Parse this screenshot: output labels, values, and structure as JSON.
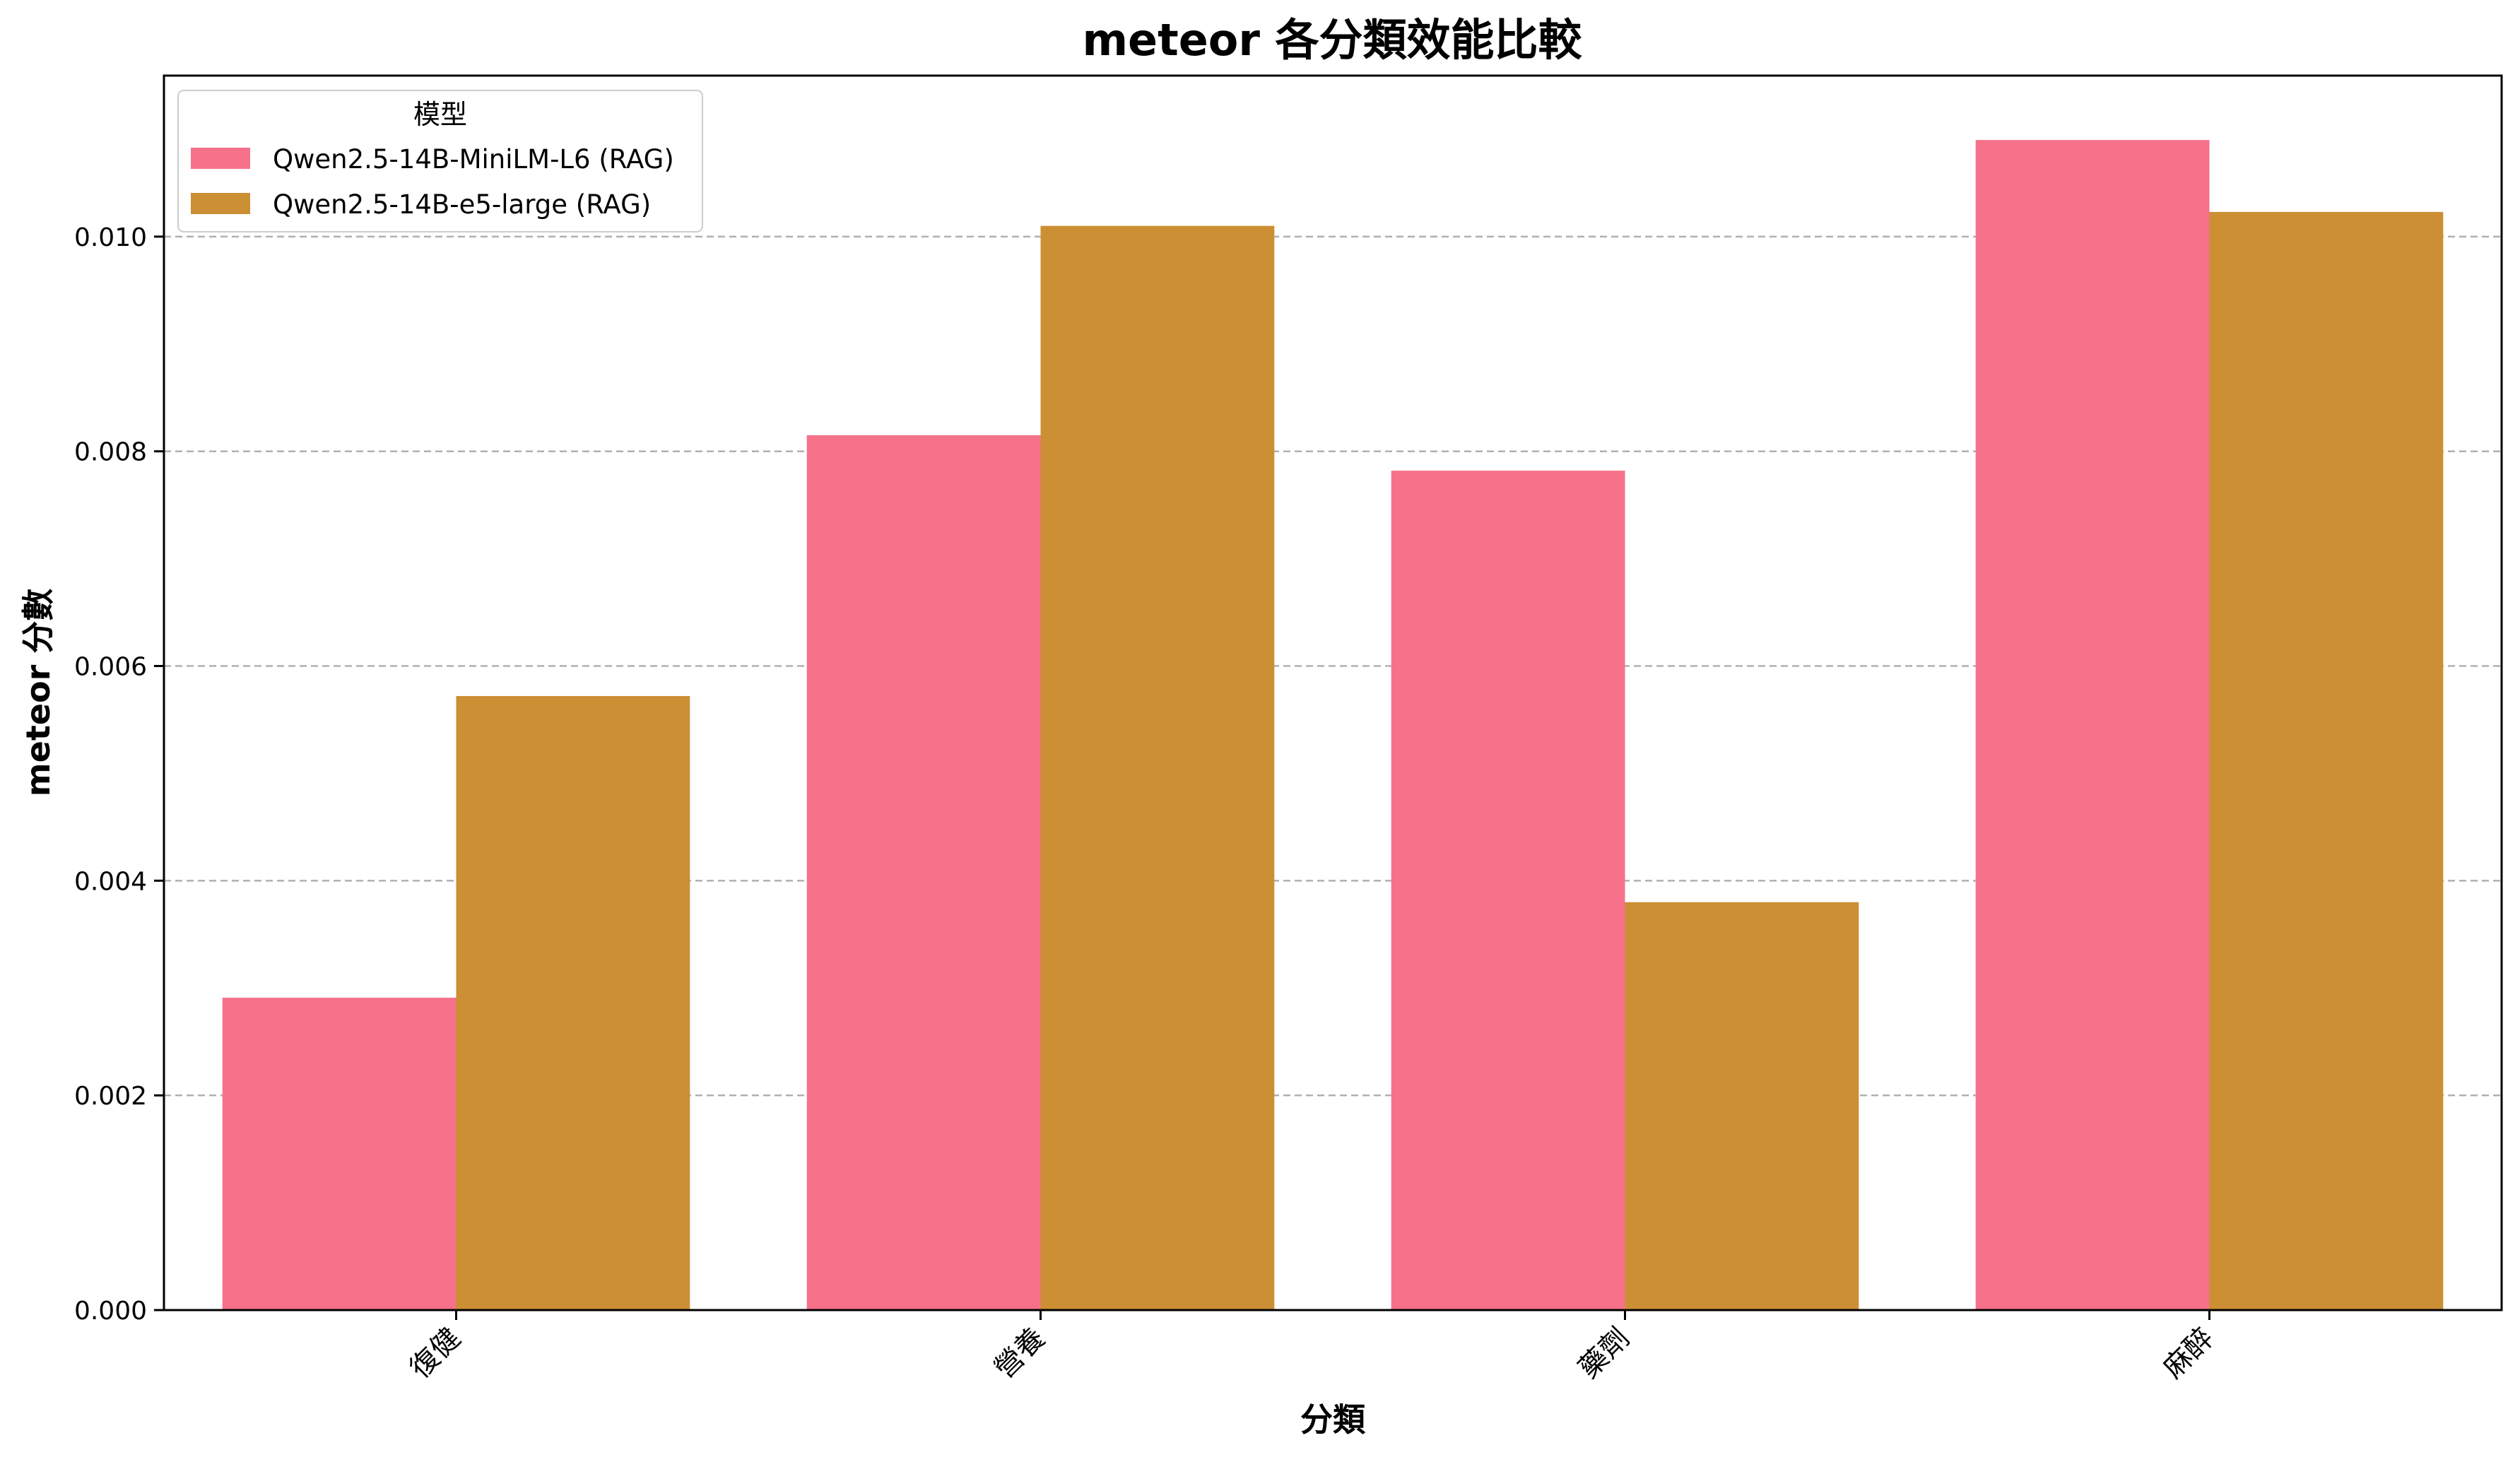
{
  "chart_data": {
    "type": "bar",
    "title": "meteor 各分類效能比較",
    "xlabel": "分類",
    "ylabel": "meteor 分數",
    "categories": [
      "復健",
      "營養",
      "藥劑",
      "麻醉"
    ],
    "series": [
      {
        "name": "Qwen2.5-14B-MiniLM-L6 (RAG)",
        "values": [
          0.00291,
          0.00815,
          0.00782,
          0.0109
        ],
        "color": "#f5728a"
      },
      {
        "name": "Qwen2.5-14B-e5-large (RAG)",
        "values": [
          0.00572,
          0.0101,
          0.0038,
          0.01023
        ],
        "color": "#cc8f34"
      }
    ],
    "ylim": [
      0,
      0.0115
    ],
    "yticks": [
      0,
      0.002,
      0.004,
      0.006,
      0.008,
      0.01
    ],
    "ytick_labels": [
      "0.000",
      "0.002",
      "0.004",
      "0.006",
      "0.008",
      "0.010"
    ],
    "grid": true,
    "legend": {
      "title": "模型",
      "position": "top-left"
    }
  }
}
